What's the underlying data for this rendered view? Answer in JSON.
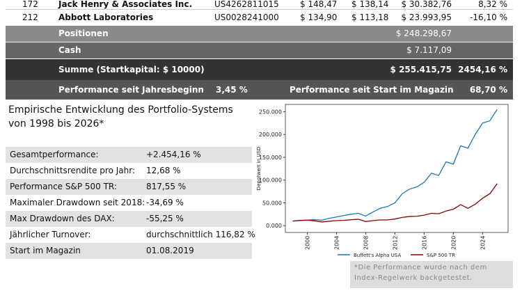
{
  "table": {
    "rows": [
      [
        "172",
        "Jack Henry & Associates Inc.",
        "US4262811015",
        "$ 148,47",
        "$ 138,14",
        "$ 30.382,76",
        "8,32 %"
      ],
      [
        "212",
        "Abbott Laboratories",
        "US0028241000",
        "$ 134,90",
        "$ 113,18",
        "$ 23.993,95",
        "-16,10 %"
      ]
    ],
    "positionen": {
      "label": "Positionen",
      "value": "$ 248.298,67"
    },
    "cash": {
      "label": "Cash",
      "value": "$ 7.117,09"
    },
    "summe": {
      "label": "Summe (Startkapital: $ 10000)",
      "value": "$ 255.415,75",
      "percent": "2454,16 %"
    },
    "performance": {
      "ytd_label": "Performance seit Jahresbeginn",
      "ytd_value": "3,45 %",
      "mag_label": "Performance seit Start im Magazin",
      "mag_value": "68,70 %"
    }
  },
  "stats": {
    "title": "Empirische Entwicklung des Portfolio-Systems von 1998 bis 2026*",
    "rows": [
      [
        "Gesamtperformance:",
        "+2.454,16 %"
      ],
      [
        "Durchschnittsrendite pro Jahr:",
        "12,68 %"
      ],
      [
        "Performance S&P 500 TR:",
        "817,55 %"
      ],
      [
        "Maximaler Drawdown seit 2018:",
        "-34,69 %"
      ],
      [
        "Max Drawdown des DAX:",
        "-55,25 %"
      ],
      [
        "Jährlicher Turnover:",
        "durchschnittlich 116,82 %"
      ],
      [
        "Start im Magazin",
        "01.08.2019"
      ]
    ]
  },
  "chart_data": {
    "type": "line",
    "y_label": "Depotwert in USD",
    "x": [
      1998,
      1999,
      2000,
      2001,
      2002,
      2003,
      2004,
      2005,
      2006,
      2007,
      2008,
      2009,
      2010,
      2011,
      2012,
      2013,
      2014,
      2015,
      2016,
      2017,
      2018,
      2019,
      2020,
      2021,
      2022,
      2023,
      2024,
      2025,
      2026
    ],
    "series": [
      {
        "name": "Buffett's Alpha USA",
        "color": "#1f77b4",
        "values": [
          10000,
          11000,
          12000,
          13000,
          12000,
          16000,
          19000,
          22000,
          25000,
          27000,
          21000,
          30000,
          38000,
          42000,
          50000,
          70000,
          80000,
          85000,
          95000,
          115000,
          110000,
          140000,
          135000,
          175000,
          170000,
          200000,
          225000,
          230000,
          255000
        ]
      },
      {
        "name": "S&P 500 TR",
        "color": "#8b0000",
        "values": [
          10000,
          11500,
          12000,
          10500,
          8000,
          9500,
          11000,
          11500,
          13000,
          14000,
          9000,
          11000,
          12500,
          12500,
          14500,
          18000,
          20000,
          20500,
          23000,
          27000,
          26000,
          32000,
          36000,
          46000,
          38000,
          47000,
          60000,
          70000,
          92000
        ]
      }
    ],
    "xlim": [
      1997,
      2027.5
    ],
    "ylim": [
      -15000,
      266000
    ],
    "xticks": [
      2000,
      2004,
      2008,
      2012,
      2016,
      2020,
      2024
    ],
    "yticks": [
      {
        "value": 0,
        "label": "0.000"
      },
      {
        "value": 50000,
        "label": "50.000"
      },
      {
        "value": 100000,
        "label": "100.000"
      },
      {
        "value": 150000,
        "label": "150.000"
      },
      {
        "value": 200000,
        "label": "200.000"
      },
      {
        "value": 250000,
        "label": "250.000"
      }
    ]
  },
  "footnote": "*Die Performance wurde nach dem Index-Regelwerk backgetestet."
}
